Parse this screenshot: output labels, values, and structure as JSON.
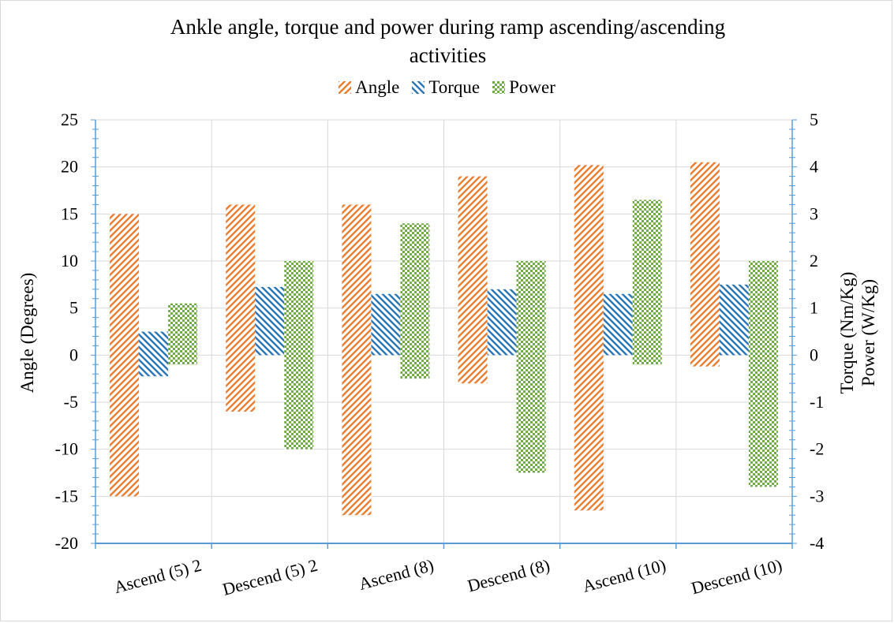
{
  "chart_data": {
    "type": "bar",
    "title_lines": [
      "Ankle angle, torque and power during  ramp ascending/ascending",
      "activities"
    ],
    "categories": [
      "Ascend (5) 2",
      "Descend (5) 2",
      "Ascend (8)",
      "Descend (8)",
      "Ascend (10)",
      "Descend (10)"
    ],
    "series": [
      {
        "name": "Angle",
        "axis": "left",
        "color": "#ed7d31",
        "pattern": "diagonal-stripes",
        "ranges": [
          [
            -15,
            15
          ],
          [
            -6,
            16
          ],
          [
            -17,
            16
          ],
          [
            -3,
            19
          ],
          [
            -16.5,
            20.2
          ],
          [
            -1.2,
            20.5
          ]
        ]
      },
      {
        "name": "Torque",
        "axis": "right",
        "color": "#2e75b6",
        "pattern": "reverse-diagonal-stripes",
        "ranges": [
          [
            -0.45,
            0.5
          ],
          [
            0,
            1.45
          ],
          [
            0,
            1.3
          ],
          [
            0,
            1.4
          ],
          [
            0,
            1.3
          ],
          [
            0,
            1.5
          ]
        ]
      },
      {
        "name": "Power",
        "axis": "right",
        "color": "#70ad47",
        "pattern": "checkerboard",
        "ranges": [
          [
            -0.2,
            1.1
          ],
          [
            -2,
            2
          ],
          [
            -0.5,
            2.8
          ],
          [
            -2.5,
            2
          ],
          [
            -0.2,
            3.3
          ],
          [
            -2.8,
            2
          ]
        ]
      }
    ],
    "y_left": {
      "label": "Angle (Degrees)",
      "min": -20,
      "max": 25,
      "step": 5
    },
    "y_right": {
      "label_lines": [
        "Torque (Nm/Kg)",
        "Power (W/Kg)"
      ],
      "min": -4,
      "max": 5,
      "step": 1
    },
    "grid": true,
    "legend_position": "top"
  }
}
